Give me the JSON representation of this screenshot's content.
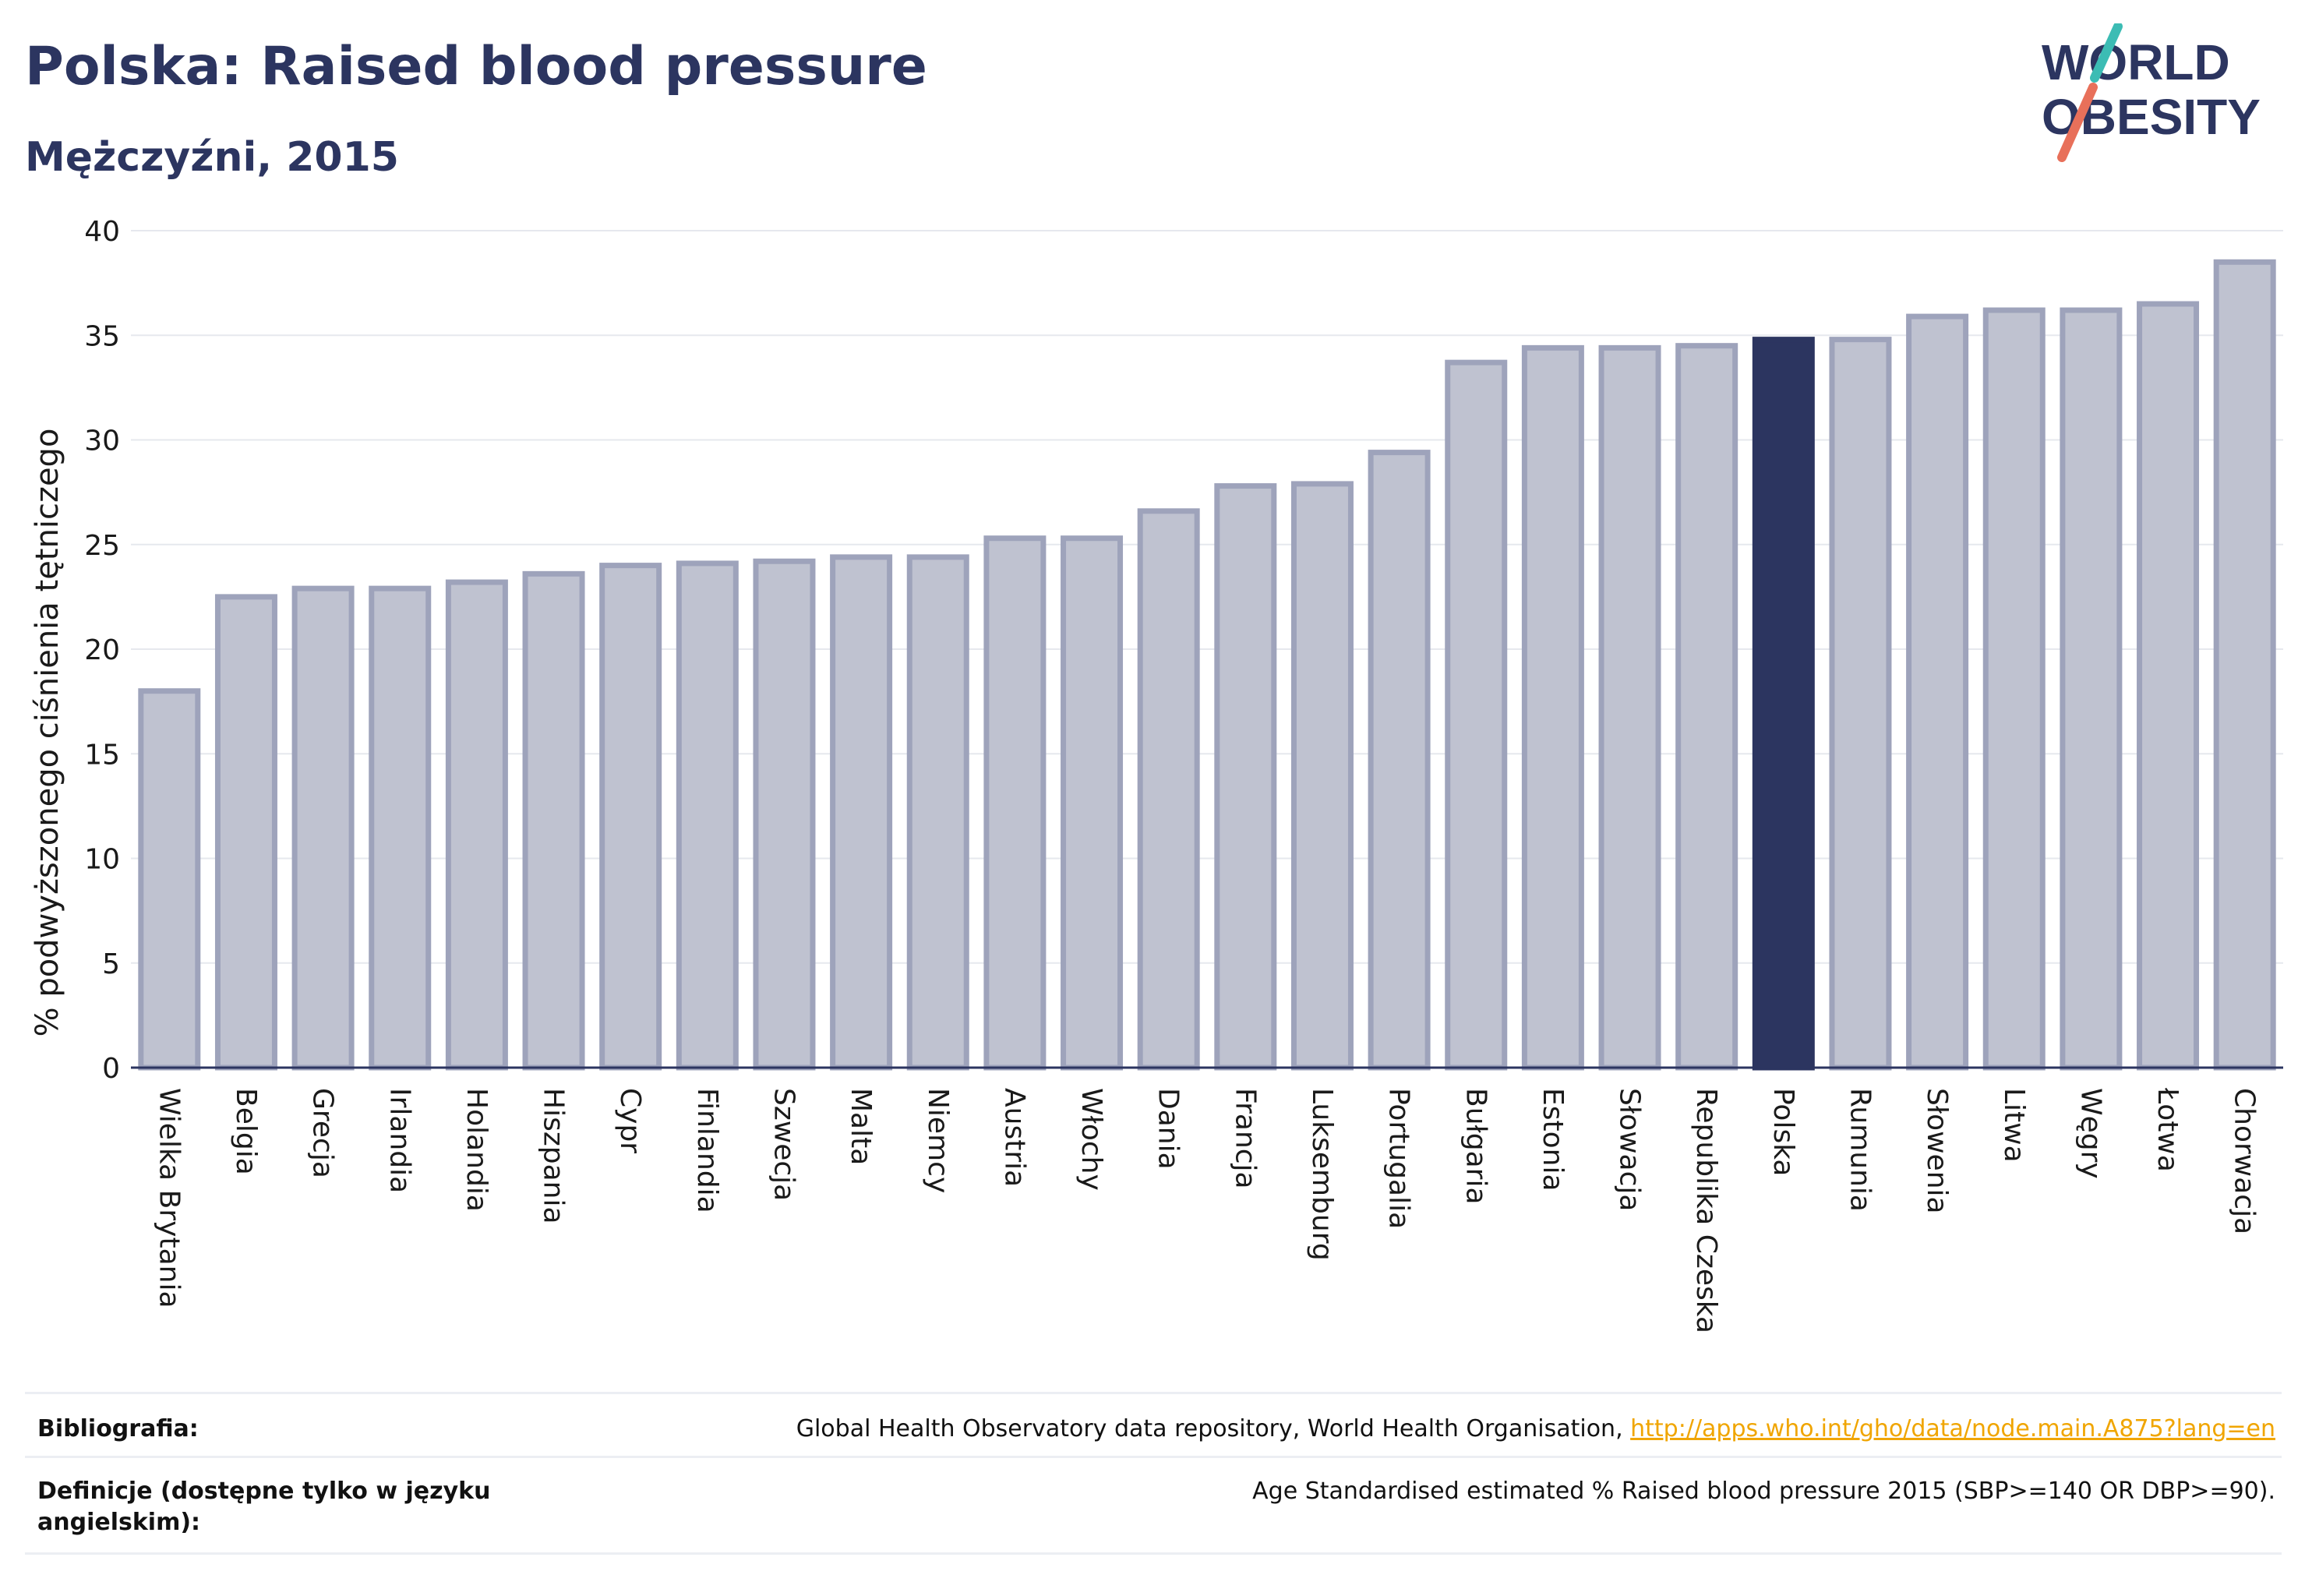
{
  "header": {
    "title": "Polska: Raised blood pressure",
    "subtitle": "Mężczyźni, 2015"
  },
  "logo": {
    "line1": "WORLD",
    "line2": "OBESITY",
    "slash_colors": [
      "#3cbcb4",
      "#e8705a"
    ],
    "text_color": "#2c3560"
  },
  "chart_data": {
    "type": "bar",
    "title": "Polska: Raised blood pressure",
    "subtitle": "Mężczyźni, 2015",
    "ylabel": "% podwyższonego ciśnienia tętniczego",
    "xlabel": "",
    "ylim": [
      0,
      40
    ],
    "yticks": [
      0,
      5,
      10,
      15,
      20,
      25,
      30,
      35,
      40
    ],
    "grid": true,
    "highlight": "Polska",
    "colors": {
      "bar": "#bfc2d0",
      "bar_border": "#9ea3bb",
      "highlight": "#2c3560"
    },
    "categories": [
      "Wielka Brytania",
      "Belgia",
      "Grecja",
      "Irlandia",
      "Holandia",
      "Hiszpania",
      "Cypr",
      "Finlandia",
      "Szwecja",
      "Malta",
      "Niemcy",
      "Austria",
      "Włochy",
      "Dania",
      "Francja",
      "Luksemburg",
      "Portugalia",
      "Bułgaria",
      "Estonia",
      "Słowacja",
      "Republika Czeska",
      "Polska",
      "Rumunia",
      "Słowenia",
      "Litwa",
      "Węgry",
      "Łotwa",
      "Chorwacja"
    ],
    "values": [
      18.0,
      22.5,
      22.9,
      22.9,
      23.2,
      23.6,
      24.0,
      24.1,
      24.2,
      24.4,
      24.4,
      25.3,
      25.3,
      26.6,
      27.8,
      27.9,
      29.4,
      33.7,
      34.4,
      34.4,
      34.5,
      34.8,
      34.8,
      35.9,
      36.2,
      36.2,
      36.5,
      38.5
    ]
  },
  "footer": {
    "bibliography_label": "Bibliografia:",
    "bibliography_text": "Global Health Observatory data repository, World Health Organisation, ",
    "bibliography_link": "http://apps.who.int/gho/data/node.main.A875?lang=en",
    "definitions_label_line1": "Definicje (dostępne tylko w języku",
    "definitions_label_line2": "angielskim):",
    "definitions_text": "Age Standardised estimated % Raised blood pressure 2015 (SBP>=140 OR DBP>=90)."
  }
}
